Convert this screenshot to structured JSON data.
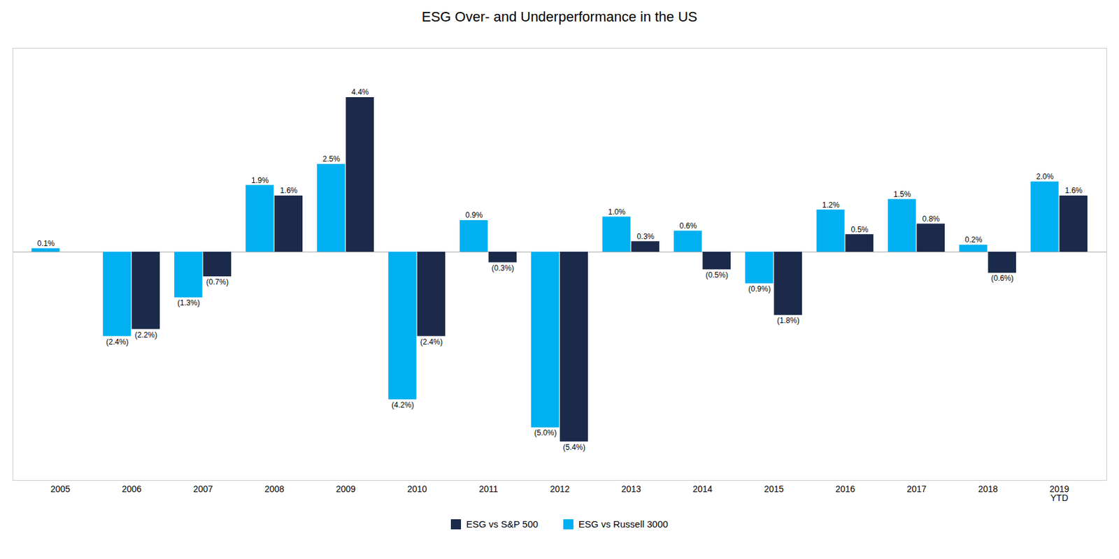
{
  "chart_data": {
    "type": "bar",
    "title": "ESG Over- and Underperformance in the US",
    "categories": [
      "2005",
      "2006",
      "2007",
      "2008",
      "2009",
      "2010",
      "2011",
      "2012",
      "2013",
      "2014",
      "2015",
      "2016",
      "2017",
      "2018",
      "2019\nYTD"
    ],
    "series": [
      {
        "name": "ESG vs S&P 500",
        "color": "#1b2a4a",
        "values": [
          0.0,
          -2.2,
          -0.7,
          1.6,
          4.4,
          -2.4,
          -0.3,
          -5.4,
          0.3,
          -0.5,
          -1.8,
          0.5,
          0.8,
          -0.6,
          1.6
        ],
        "value_labels": [
          null,
          "(2.2%)",
          "(0.7%)",
          "1.6%",
          "4.4%",
          "(2.4%)",
          "(0.3%)",
          "(5.4%)",
          "0.3%",
          "(0.5%)",
          "(1.8%)",
          "0.5%",
          "0.8%",
          "(0.6%)",
          "1.6%"
        ]
      },
      {
        "name": "ESG vs Russell 3000",
        "color": "#00b0f0",
        "values": [
          0.1,
          -2.4,
          -1.3,
          1.9,
          2.5,
          -4.2,
          0.9,
          -5.0,
          1.0,
          0.6,
          -0.9,
          1.2,
          1.5,
          0.2,
          2.0
        ],
        "value_labels": [
          "0.1%",
          "(2.4%)",
          "(1.3%)",
          "1.9%",
          "2.5%",
          "(4.2%)",
          "0.9%",
          "(5.0%)",
          "1.0%",
          "0.6%",
          "(0.9%)",
          "1.2%",
          "1.5%",
          "0.2%",
          "2.0%"
        ]
      }
    ],
    "ylim": [
      -6.5,
      5.8
    ],
    "data_labels": true,
    "tick_labels": "x",
    "grid": false,
    "legend": "bottom"
  }
}
